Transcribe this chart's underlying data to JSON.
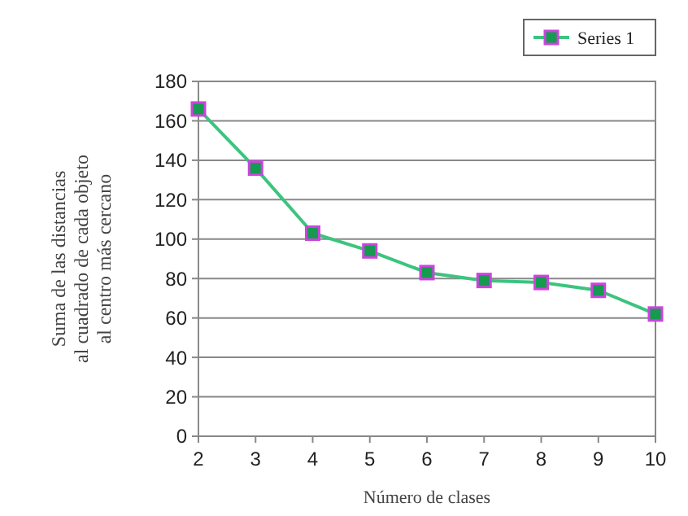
{
  "chart_data": {
    "type": "line",
    "xlabel": "Número de clases",
    "ylabel": "Suma de las distancias\nal cuadrado de cada objeto\nal centro más cercano",
    "x": [
      2,
      3,
      4,
      5,
      6,
      7,
      8,
      9,
      10
    ],
    "series": [
      {
        "name": "Series 1",
        "color": "#3cc47f",
        "values": [
          166,
          136,
          103,
          94,
          83,
          79,
          78,
          74,
          62
        ]
      }
    ],
    "xlim": [
      2,
      10
    ],
    "xticks": [
      2,
      3,
      4,
      5,
      6,
      7,
      8,
      9,
      10
    ],
    "ylim": [
      0,
      180
    ],
    "yticks": [
      0,
      20,
      40,
      60,
      80,
      100,
      120,
      140,
      160,
      180
    ],
    "grid": "y",
    "legend": "top right",
    "marker": "square",
    "line_style": "solid"
  }
}
